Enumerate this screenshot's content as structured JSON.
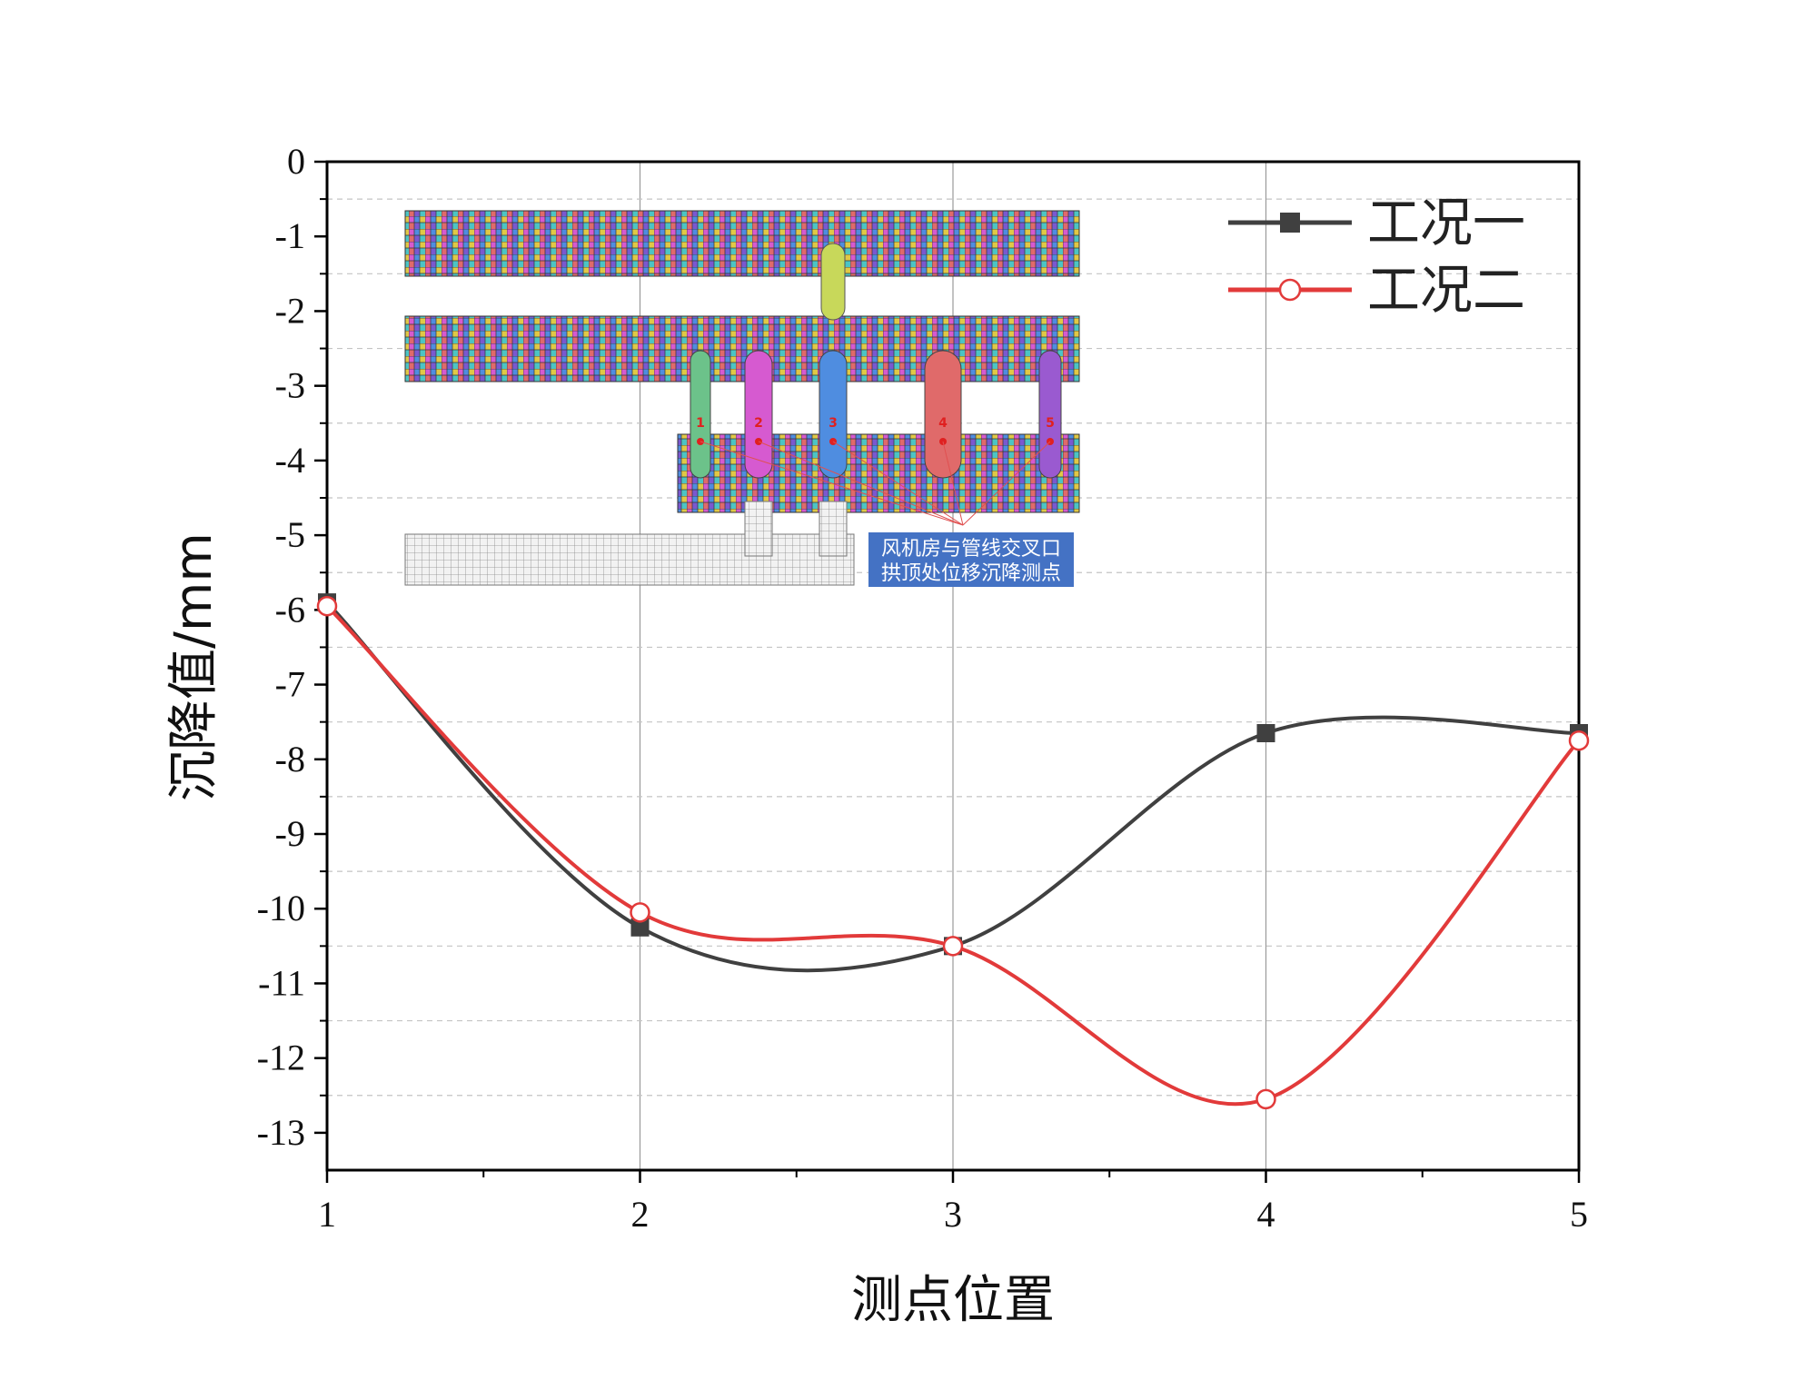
{
  "chart_data": {
    "type": "line",
    "x": [
      1,
      2,
      3,
      4,
      5
    ],
    "xticks": [
      "1",
      "2",
      "3",
      "4",
      "5"
    ],
    "yticks": [
      "0",
      "-1",
      "-2",
      "-3",
      "-4",
      "-5",
      "-6",
      "-7",
      "-8",
      "-9",
      "-10",
      "-11",
      "-12",
      "-13"
    ],
    "xlabel": "测点位置",
    "ylabel": "沉降值/mm",
    "xlim": [
      1,
      5
    ],
    "ylim": [
      -13.5,
      0
    ],
    "series": [
      {
        "name": "工况一",
        "values": [
          -5.9,
          -10.25,
          -10.5,
          -7.65,
          -7.65
        ],
        "color": "#404040",
        "marker": "square"
      },
      {
        "name": "工况二",
        "values": [
          -5.95,
          -10.05,
          -10.5,
          -12.55,
          -7.75
        ],
        "color": "#e23a3a",
        "marker": "circle-open"
      }
    ],
    "legend_position": "top-right",
    "grid": "vertical at x ticks, dashed horizontal at half-unit y",
    "inset": {
      "description_label": [
        "风机房与管线交叉口",
        "拱顶处位移沉降测点"
      ],
      "point_labels": [
        "1",
        "2",
        "3",
        "4",
        "5"
      ],
      "label_color": "#4472c4"
    }
  }
}
